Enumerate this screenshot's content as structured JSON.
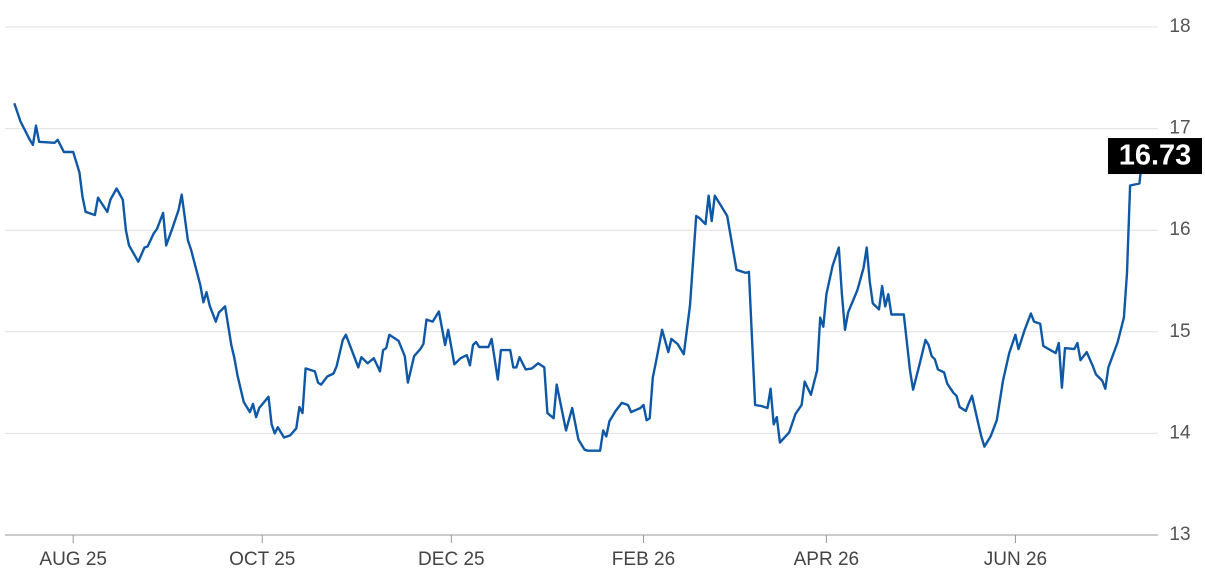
{
  "chart_data": {
    "type": "line",
    "x": [
      -19,
      -17,
      -14,
      -13,
      -12,
      -11,
      -6,
      -5,
      -3,
      0,
      2,
      3,
      4,
      7,
      8,
      11,
      12,
      14,
      16,
      17,
      18,
      21,
      23,
      24,
      26,
      27,
      29,
      30,
      32,
      34,
      35,
      37,
      38,
      41,
      42,
      43,
      44,
      46,
      47,
      49,
      51,
      52,
      53,
      55,
      57,
      58,
      59,
      60,
      63,
      64,
      65,
      66,
      68,
      70,
      72,
      73,
      74,
      75,
      78,
      79,
      80,
      82,
      84,
      85,
      87,
      88,
      90,
      92,
      93,
      95,
      97,
      99,
      100,
      101,
      102,
      105,
      107,
      108,
      110,
      112,
      113,
      114,
      116,
      118,
      120,
      121,
      123,
      125,
      127,
      128,
      129,
      130,
      131,
      134,
      135,
      137,
      138,
      141,
      142,
      143,
      144,
      146,
      148,
      150,
      152,
      153,
      155,
      156,
      159,
      161,
      163,
      165,
      166,
      170,
      171,
      172,
      173,
      175,
      177,
      179,
      180,
      183,
      184,
      185,
      186,
      187,
      188,
      190,
      192,
      193,
      195,
      197,
      199,
      201,
      202,
      204,
      205,
      206,
      207,
      209,
      211,
      214,
      217,
      218,
      220,
      222,
      224,
      225,
      226,
      227,
      228,
      231,
      233,
      235,
      236,
      238,
      240,
      241,
      242,
      243,
      245,
      247,
      248,
      249,
      250,
      253,
      255,
      256,
      257,
      258,
      260,
      261,
      262,
      263,
      264,
      268,
      270,
      271,
      273,
      275,
      276,
      277,
      278,
      279,
      281,
      282,
      284,
      285,
      286,
      288,
      289,
      290,
      292,
      293,
      294,
      296,
      298,
      300,
      302,
      304,
      305,
      307,
      309,
      310,
      312,
      313,
      317,
      318,
      319,
      320,
      323,
      324,
      325,
      327,
      329,
      330,
      332,
      333,
      334,
      337,
      338,
      339,
      340,
      341,
      344,
      345
    ],
    "values": [
      17.25,
      17.07,
      16.89,
      16.84,
      17.03,
      16.87,
      16.86,
      16.89,
      16.77,
      16.77,
      16.57,
      16.33,
      16.18,
      16.15,
      16.32,
      16.18,
      16.3,
      16.41,
      16.3,
      16.0,
      15.85,
      15.69,
      15.83,
      15.84,
      15.97,
      16.01,
      16.17,
      15.85,
      16.02,
      16.2,
      16.35,
      15.9,
      15.81,
      15.46,
      15.29,
      15.39,
      15.26,
      15.1,
      15.19,
      15.25,
      14.87,
      14.74,
      14.57,
      14.31,
      14.21,
      14.29,
      14.16,
      14.25,
      14.36,
      14.09,
      14.0,
      14.06,
      13.96,
      13.98,
      14.05,
      14.26,
      14.2,
      14.64,
      14.61,
      14.5,
      14.48,
      14.56,
      14.59,
      14.66,
      14.92,
      14.97,
      14.81,
      14.65,
      14.75,
      14.69,
      14.74,
      14.61,
      14.82,
      14.84,
      14.97,
      14.91,
      14.76,
      14.5,
      14.76,
      14.83,
      14.88,
      15.12,
      15.1,
      15.2,
      14.87,
      15.02,
      14.68,
      14.74,
      14.77,
      14.67,
      14.87,
      14.9,
      14.85,
      14.85,
      14.93,
      14.53,
      14.82,
      14.82,
      14.65,
      14.65,
      14.75,
      14.63,
      14.64,
      14.69,
      14.65,
      14.2,
      14.15,
      14.48,
      14.03,
      14.25,
      13.94,
      13.84,
      13.83,
      13.83,
      14.03,
      13.97,
      14.12,
      14.22,
      14.3,
      14.28,
      14.21,
      14.25,
      14.28,
      14.13,
      14.15,
      14.55,
      14.7,
      15.02,
      14.8,
      14.93,
      14.88,
      14.78,
      15.26,
      16.14,
      16.12,
      16.06,
      16.34,
      16.09,
      16.34,
      16.24,
      16.14,
      15.61,
      15.58,
      15.59,
      14.28,
      14.27,
      14.25,
      14.44,
      14.09,
      14.16,
      13.91,
      14.01,
      14.19,
      14.28,
      14.51,
      14.38,
      14.62,
      15.14,
      15.05,
      15.37,
      15.65,
      15.83,
      15.37,
      15.02,
      15.19,
      15.41,
      15.63,
      15.83,
      15.49,
      15.28,
      15.22,
      15.45,
      15.25,
      15.37,
      15.17,
      15.17,
      14.62,
      14.43,
      14.67,
      14.92,
      14.87,
      14.76,
      14.73,
      14.63,
      14.6,
      14.49,
      14.4,
      14.37,
      14.26,
      14.22,
      14.3,
      14.37,
      14.1,
      13.97,
      13.87,
      13.97,
      14.13,
      14.52,
      14.79,
      14.97,
      14.83,
      15.02,
      15.18,
      15.1,
      15.08,
      14.86,
      14.79,
      14.89,
      14.45,
      14.84,
      14.83,
      14.89,
      14.72,
      14.8,
      14.66,
      14.58,
      14.52,
      14.44,
      14.65,
      14.9,
      15.02,
      15.14,
      15.58,
      16.44,
      16.46,
      16.73
    ],
    "color": "#0f58a6",
    "xlim": [
      -22,
      350
    ],
    "xticks": [
      {
        "value": 0,
        "label": "AUG 25"
      },
      {
        "value": 61,
        "label": "OCT 25"
      },
      {
        "value": 122,
        "label": "DEC 25"
      },
      {
        "value": 184,
        "label": "FEB 26"
      },
      {
        "value": 243,
        "label": "APR 26"
      },
      {
        "value": 304,
        "label": "JUN 26"
      }
    ],
    "ylim": [
      13,
      18
    ],
    "yticks": [
      13,
      14,
      15,
      16,
      17,
      18
    ],
    "grid": true
  }
}
